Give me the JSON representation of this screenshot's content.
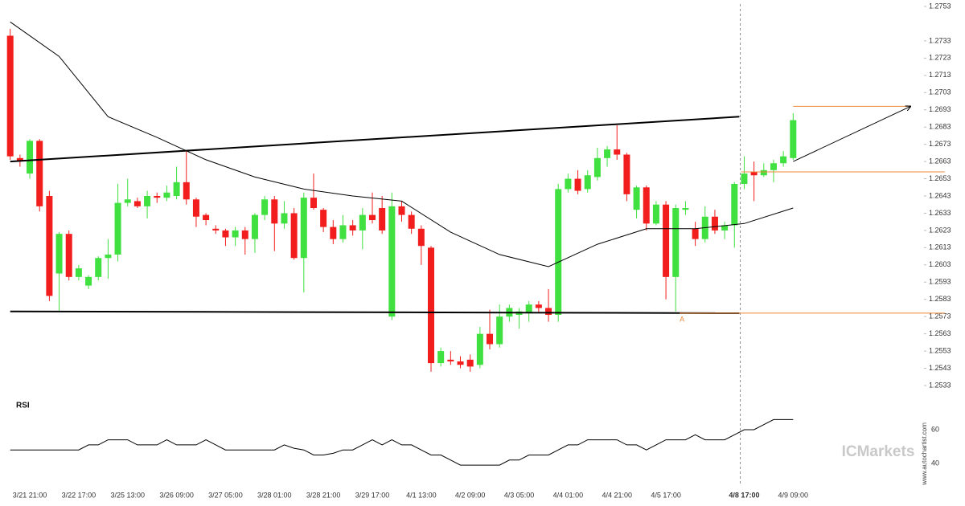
{
  "chart_data": {
    "type": "candlestick",
    "categories": [
      null,
      null,
      "3/21 21:00",
      null,
      null,
      null,
      null,
      "3/22 17:00",
      null,
      null,
      null,
      null,
      "3/25 13:00",
      null,
      null,
      null,
      null,
      "3/26 09:00",
      null,
      null,
      null,
      null,
      "3/27 05:00",
      null,
      null,
      null,
      null,
      "3/28 01:00",
      null,
      null,
      null,
      null,
      "3/28 21:00",
      null,
      null,
      null,
      null,
      "3/29 17:00",
      null,
      null,
      null,
      null,
      "4/1 13:00",
      null,
      null,
      null,
      null,
      "4/2 09:00",
      null,
      null,
      null,
      null,
      "4/3 05:00",
      null,
      null,
      null,
      null,
      "4/4 01:00",
      null,
      null,
      null,
      null,
      "4/4 21:00",
      null,
      null,
      null,
      null,
      "4/5 17:00",
      null,
      null,
      null,
      null,
      null,
      null,
      null,
      "4/8 17:00",
      null,
      null,
      null,
      null,
      "4/9 09:00"
    ],
    "current_time": "4/8 17:00",
    "open": [
      1.2736,
      1.2665,
      1.2656,
      1.2675,
      1.2643,
      1.2598,
      1.2621,
      1.2596,
      1.2591,
      1.2596,
      1.2607,
      1.2609,
      1.2639,
      1.264,
      1.2637,
      1.2643,
      1.2642,
      1.2643,
      1.2651,
      1.2641,
      1.2632,
      1.2624,
      1.2623,
      1.2619,
      1.2623,
      1.2618,
      1.2632,
      1.2641,
      1.2627,
      1.2633,
      1.2607,
      1.2642,
      1.2635,
      1.2625,
      1.2618,
      1.2626,
      1.2623,
      1.2632,
      1.2636,
      1.2573,
      1.2637,
      1.2632,
      1.2624,
      1.2613,
      1.2546,
      1.2548,
      1.2547,
      1.2548,
      1.2545,
      1.2563,
      1.2557,
      1.2573,
      1.2574,
      1.2575,
      1.258,
      1.2578,
      1.2574,
      1.2647,
      1.2653,
      1.2647,
      1.2654,
      1.2665,
      1.267,
      1.2667,
      1.2635,
      1.2648,
      1.2627,
      1.2638,
      1.2596,
      1.2635,
      1.2624,
      1.2618,
      1.2631,
      1.2623,
      1.2626,
      1.265,
      1.2657,
      1.2655,
      1.2658,
      1.2662,
      1.2665
    ],
    "high": [
      1.274,
      1.2667,
      1.2676,
      1.2676,
      1.2646,
      1.2622,
      1.2623,
      1.2603,
      1.2597,
      1.2608,
      1.2618,
      1.265,
      1.2653,
      1.2642,
      1.2646,
      1.2645,
      1.2649,
      1.266,
      1.2669,
      1.2642,
      1.2633,
      1.2626,
      1.2624,
      1.2625,
      1.2625,
      1.2633,
      1.2643,
      1.2643,
      1.264,
      1.2636,
      1.2645,
      1.2656,
      1.2636,
      1.2629,
      1.2632,
      1.2629,
      1.2636,
      1.2645,
      1.2643,
      1.2645,
      1.264,
      1.2634,
      1.2626,
      1.2614,
      1.2555,
      1.2553,
      1.255,
      1.2551,
      1.2567,
      1.2577,
      1.258,
      1.258,
      1.2578,
      1.2582,
      1.2582,
      1.2589,
      1.265,
      1.2656,
      1.2658,
      1.2658,
      1.2671,
      1.2672,
      1.2684,
      1.2668,
      1.2649,
      1.2649,
      1.264,
      1.264,
      1.2638,
      1.264,
      1.2628,
      1.2637,
      1.2635,
      1.2628,
      1.2651,
      1.2666,
      1.2663,
      1.2662,
      1.2664,
      1.2669,
      1.2691
    ],
    "low": [
      1.2664,
      1.266,
      1.2653,
      1.2634,
      1.2582,
      1.2576,
      1.2594,
      1.2594,
      1.2589,
      1.2594,
      1.2595,
      1.2605,
      1.2637,
      1.2636,
      1.263,
      1.2639,
      1.264,
      1.2641,
      1.2638,
      1.2625,
      1.2626,
      1.2621,
      1.2614,
      1.2614,
      1.2609,
      1.261,
      1.2629,
      1.2611,
      1.2624,
      1.2606,
      1.2587,
      1.2635,
      1.2622,
      1.2615,
      1.2616,
      1.262,
      1.2612,
      1.2627,
      1.2621,
      1.2571,
      1.2628,
      1.2621,
      1.2603,
      1.2541,
      1.2544,
      1.2545,
      1.2543,
      1.2541,
      1.2543,
      1.2554,
      1.2555,
      1.257,
      1.2566,
      1.257,
      1.2575,
      1.257,
      1.257,
      1.2645,
      1.2644,
      1.2645,
      1.2652,
      1.266,
      1.2664,
      1.264,
      1.263,
      1.2623,
      1.2626,
      1.2583,
      1.2576,
      1.2632,
      1.2614,
      1.2616,
      1.2621,
      1.2618,
      1.2613,
      1.2647,
      1.264,
      1.2654,
      1.2651,
      1.266,
      1.2664
    ],
    "close": [
      1.2666,
      1.2663,
      1.2675,
      1.2637,
      1.2585,
      1.2621,
      1.2596,
      1.2601,
      1.2596,
      1.2607,
      1.2609,
      1.2639,
      1.2641,
      1.2637,
      1.2643,
      1.2642,
      1.2645,
      1.2651,
      1.2641,
      1.2631,
      1.2629,
      1.2623,
      1.2619,
      1.2623,
      1.2618,
      1.2632,
      1.2641,
      1.2627,
      1.2633,
      1.2607,
      1.2642,
      1.2636,
      1.2625,
      1.2618,
      1.2626,
      1.2623,
      1.2632,
      1.2629,
      1.2623,
      1.2637,
      1.2632,
      1.2624,
      1.2614,
      1.2546,
      1.2553,
      1.2547,
      1.2545,
      1.2544,
      1.2563,
      1.2557,
      1.2573,
      1.2578,
      1.2576,
      1.258,
      1.2578,
      1.2574,
      1.2647,
      1.2653,
      1.2646,
      1.2655,
      1.2665,
      1.267,
      1.2667,
      1.2644,
      1.2648,
      1.2627,
      1.2638,
      1.2596,
      1.2636,
      1.2636,
      1.2618,
      1.2631,
      1.2623,
      1.2626,
      1.265,
      1.2656,
      1.2655,
      1.2658,
      1.2662,
      1.2666,
      1.2687
    ],
    "up_color": "#3fe03f",
    "down_color": "#f21d1d",
    "ma": {
      "x": [
        0,
        5,
        10,
        15,
        20,
        25,
        30,
        35,
        40,
        45,
        50,
        55,
        60,
        65,
        70,
        75,
        80
      ],
      "values": [
        1.2744,
        1.2724,
        1.2689,
        1.2677,
        1.2664,
        1.2654,
        1.2647,
        1.2643,
        1.264,
        1.2622,
        1.2609,
        1.2602,
        1.2615,
        1.2624,
        1.2624,
        1.2627,
        1.2636
      ],
      "color": "#000000"
    },
    "trend_lines": [
      {
        "x": [
          0,
          74.5
        ],
        "values": [
          1.2663,
          1.2689
        ],
        "color": "#000000"
      },
      {
        "x": [
          0,
          74.5
        ],
        "values": [
          1.2576,
          1.2575
        ],
        "color": "#000000"
      }
    ],
    "projection": {
      "x": [
        80,
        92
      ],
      "values": [
        1.2663,
        1.2695
      ],
      "color": "#000000"
    },
    "levels": [
      {
        "x": [
          80,
          92
        ],
        "values": [
          1.2695,
          1.2695
        ],
        "color": "#f0883a"
      },
      {
        "x": [
          74.7,
          95.5
        ],
        "values": [
          1.2657,
          1.2657
        ],
        "color": "#f0883a"
      },
      {
        "x": [
          68.4,
          95.5
        ],
        "values": [
          1.2575,
          1.2575
        ],
        "color": "#f0883a"
      }
    ],
    "annotation": "A",
    "ylim": [
      1.2533,
      1.2753
    ],
    "yticks": [
      1.2533,
      1.2543,
      1.2553,
      1.2563,
      1.2573,
      1.2583,
      1.2593,
      1.2603,
      1.2613,
      1.2623,
      1.2633,
      1.2643,
      1.2653,
      1.2663,
      1.2673,
      1.2683,
      1.2693,
      1.2703,
      1.2713,
      1.2723,
      1.2733,
      1.2753
    ],
    "rsi": {
      "title": "RSI",
      "values": [
        48,
        48,
        48,
        48,
        48,
        48,
        48,
        48,
        51,
        51,
        54,
        54,
        54,
        51,
        51,
        51,
        54,
        51,
        51,
        51,
        54,
        51,
        48,
        48,
        48,
        48,
        48,
        48,
        51,
        49,
        48,
        45,
        45,
        46,
        48,
        48,
        51,
        54,
        51,
        54,
        51,
        51,
        48,
        45,
        45,
        42,
        39,
        39,
        39,
        39,
        39,
        42,
        42,
        45,
        45,
        45,
        48,
        51,
        51,
        54,
        54,
        54,
        54,
        51,
        51,
        48,
        51,
        54,
        54,
        54,
        57,
        54,
        54,
        54,
        57,
        60,
        60,
        63,
        66,
        66,
        66
      ],
      "color": "#000000",
      "ylim": [
        30,
        70
      ],
      "yticks": [
        40,
        60
      ]
    },
    "watermark": "ICMarkets",
    "source": "www.autochartist.com"
  }
}
